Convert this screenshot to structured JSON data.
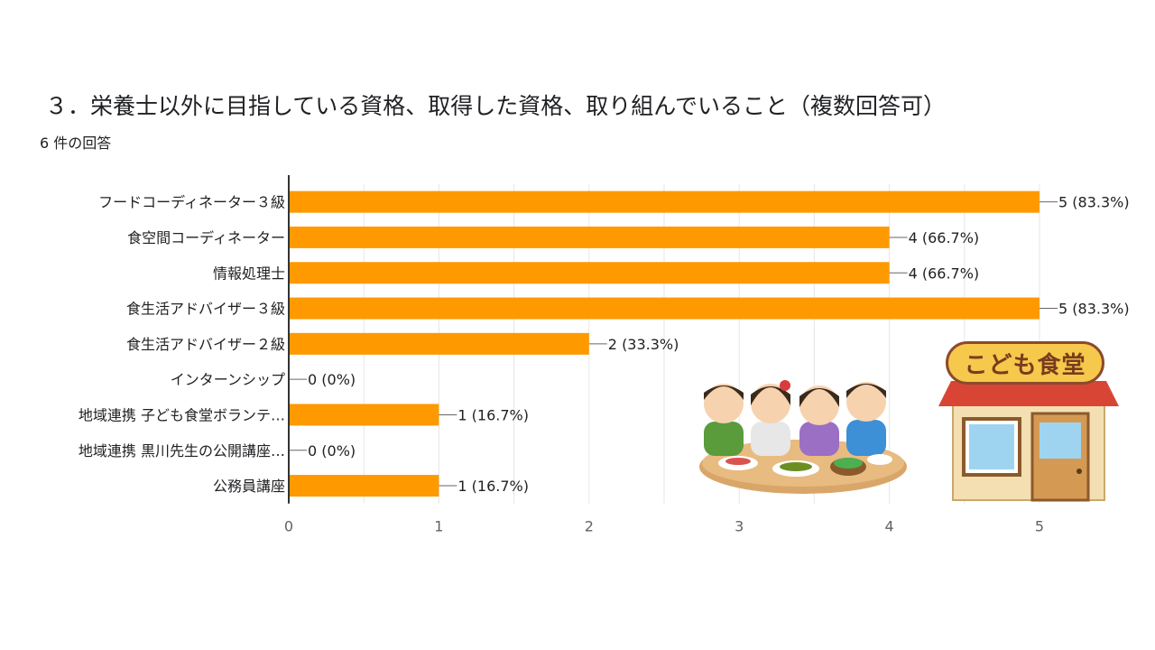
{
  "header": {
    "title": "３．栄養士以外に目指している資格、取得した資格、取り組んでいること（複数回答可）",
    "subtitle": "6 件の回答"
  },
  "colors": {
    "bar": "#ff9900",
    "axis": "#333333",
    "grid": "#e6e6e6"
  },
  "illustration": {
    "shop_sign": "こども食堂"
  },
  "chart_data": {
    "type": "bar",
    "orientation": "horizontal",
    "categories": [
      "フードコーディネーター３級",
      "食空間コーディネーター",
      "情報処理士",
      "食生活アドバイザー３級",
      "食生活アドバイザー２級",
      "インターンシップ",
      "地域連携 子ども食堂ボランテ…",
      "地域連携 黒川先生の公開講座…",
      "公務員講座"
    ],
    "values": [
      5,
      4,
      4,
      5,
      2,
      0,
      1,
      0,
      1
    ],
    "value_labels": [
      "5 (83.3%)",
      "4 (66.7%)",
      "4 (66.7%)",
      "5 (83.3%)",
      "2 (33.3%)",
      "0 (0%)",
      "1 (16.7%)",
      "0 (0%)",
      "1 (16.7%)"
    ],
    "xlim": [
      0,
      5
    ],
    "xticks": [
      "0",
      "1",
      "2",
      "3",
      "4",
      "5"
    ],
    "grid": true
  }
}
